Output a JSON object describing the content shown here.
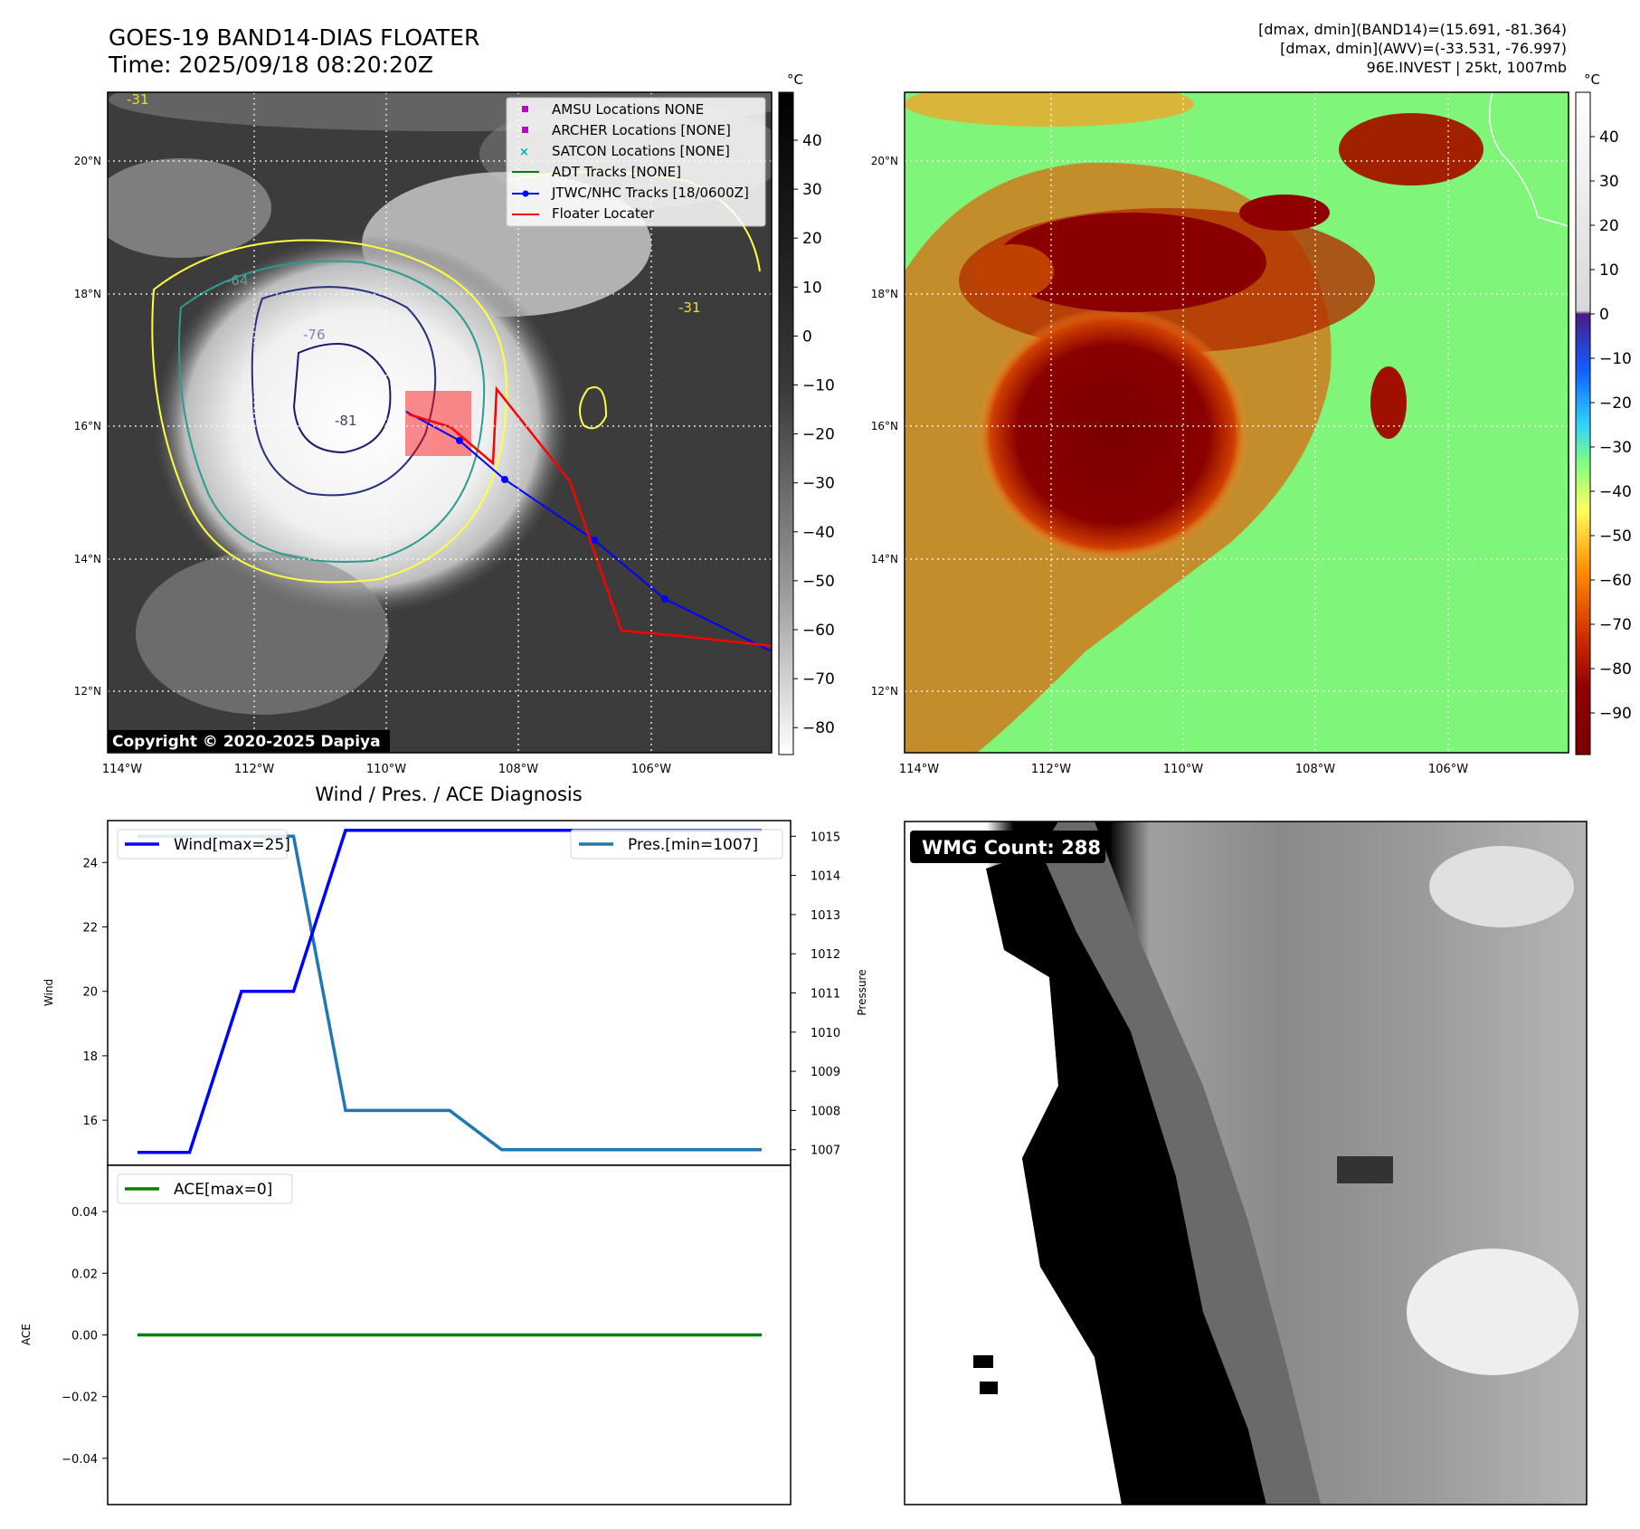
{
  "header": {
    "title_line1": "GOES-19 BAND14-DIAS FLOATER",
    "title_line2": "Time: 2025/09/18 08:20:20Z",
    "right_line1": "[dmax, dmin](BAND14)=(15.691, -81.364)",
    "right_line2": "[dmax, dmin](AWV)=(-33.531, -76.997)",
    "right_line3": "96E.INVEST | 25kt, 1007mb"
  },
  "map": {
    "lon_ticks": [
      "114°W",
      "112°W",
      "110°W",
      "108°W",
      "106°W"
    ],
    "lat_ticks": [
      "20°N",
      "18°N",
      "16°N",
      "14°N",
      "12°N"
    ],
    "copyright": "Copyright © 2020-2025 Dapiya",
    "contour_labels": [
      "-31",
      "-64",
      "-76",
      "-81"
    ],
    "legend": [
      {
        "label": "AMSU Locations NONE",
        "color": "#c000c0",
        "marker": "square"
      },
      {
        "label": "ARCHER Locations [NONE]",
        "color": "#c000c0",
        "marker": "square"
      },
      {
        "label": "SATCON Locations [NONE]",
        "color": "#00b0b0",
        "marker": "x"
      },
      {
        "label": "ADT Tracks [NONE]",
        "color": "#008000",
        "marker": "line"
      },
      {
        "label": "JTWC/NHC Tracks [18/0600Z]",
        "color": "#0000ff",
        "marker": "line-dot"
      },
      {
        "label": "Floater Locater",
        "color": "#ff0000",
        "marker": "line"
      }
    ]
  },
  "colorbar_gray": {
    "unit": "°C",
    "ticks": [
      "40",
      "30",
      "20",
      "10",
      "0",
      "−10",
      "−20",
      "−30",
      "−40",
      "−50",
      "−60",
      "−70",
      "−80"
    ]
  },
  "colorbar_color": {
    "unit": "°C",
    "ticks": [
      "40",
      "30",
      "20",
      "10",
      "0",
      "−10",
      "−20",
      "−30",
      "−40",
      "−50",
      "−60",
      "−70",
      "−80",
      "−90"
    ]
  },
  "diagnosis": {
    "title": "Wind / Pres. / ACE Diagnosis",
    "wind_ylabel": "Wind",
    "pres_ylabel": "Pressure",
    "ace_ylabel": "ACE",
    "wind_legend": "Wind[max=25]",
    "pres_legend": "Pres.[min=1007]",
    "ace_legend": "ACE[max=0]"
  },
  "wmg": {
    "label": "WMG Count: 288"
  },
  "chart_data": [
    {
      "type": "line",
      "title": "Wind / Pres. / ACE Diagnosis",
      "x": [
        0,
        1,
        2,
        3,
        4,
        5,
        6,
        7,
        8,
        9,
        10,
        11,
        12
      ],
      "series": [
        {
          "name": "Wind[max=25]",
          "axis": "left",
          "color": "#0000ff",
          "values": [
            15,
            15,
            20,
            20,
            25,
            25,
            25,
            25,
            25,
            25,
            25,
            25,
            25
          ]
        },
        {
          "name": "Pres.[min=1007]",
          "axis": "right",
          "color": "#1f77b4",
          "values": [
            1015,
            1015,
            1015,
            1015,
            1008,
            1008,
            1008,
            1007,
            1007,
            1007,
            1007,
            1007,
            1007
          ]
        }
      ],
      "ylabel": "Wind",
      "ylim": [
        14.6,
        25.3
      ],
      "yticks": [
        16,
        18,
        20,
        22,
        24
      ],
      "y2label": "Pressure",
      "y2lim": [
        1006.6,
        1015.4
      ],
      "y2ticks": [
        1007,
        1008,
        1009,
        1010,
        1011,
        1012,
        1013,
        1014,
        1015
      ]
    },
    {
      "type": "line",
      "x": [
        0,
        12
      ],
      "series": [
        {
          "name": "ACE[max=0]",
          "color": "#008000",
          "values": [
            0,
            0
          ]
        }
      ],
      "ylabel": "ACE",
      "ylim": [
        -0.055,
        0.055
      ],
      "yticks": [
        0.04,
        0.02,
        0.0,
        -0.02,
        -0.04
      ],
      "ytick_labels": [
        "0.04",
        "0.02",
        "0.00",
        "−0.02",
        "−0.04"
      ]
    }
  ]
}
